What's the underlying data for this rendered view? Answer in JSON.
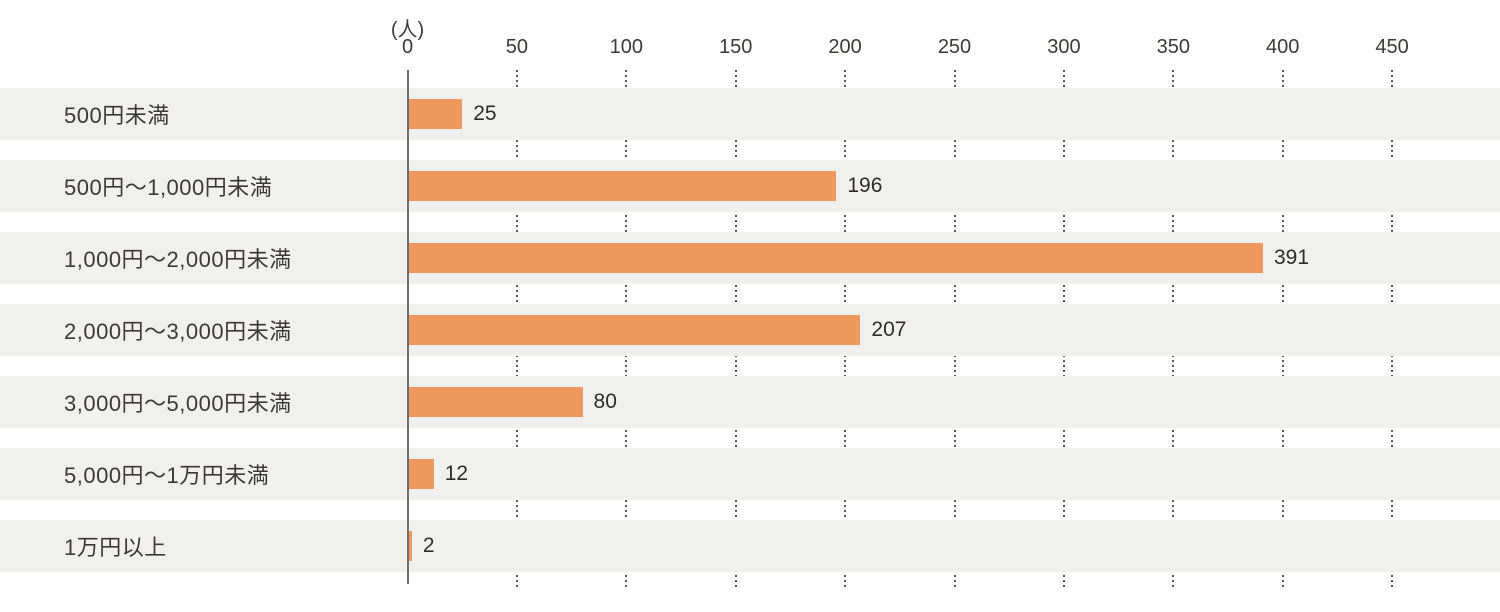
{
  "chart_data": {
    "type": "bar",
    "orientation": "horizontal",
    "title": "",
    "unit_label": "(人)",
    "categories": [
      "500円未満",
      "500円〜1,000円未満",
      "1,000円〜2,000円未満",
      "2,000円〜3,000円未満",
      "3,000円〜5,000円未満",
      "5,000円〜1万円未満",
      "1万円以上"
    ],
    "values": [
      25,
      196,
      391,
      207,
      80,
      12,
      2
    ],
    "value_labels": [
      "25",
      "196",
      "391",
      "207",
      "80",
      "12",
      "2"
    ],
    "xlim": [
      0,
      450
    ],
    "xticks": [
      0,
      50,
      100,
      150,
      200,
      250,
      300,
      350,
      400,
      450
    ],
    "xtick_labels": [
      "0",
      "50",
      "100",
      "150",
      "200",
      "250",
      "300",
      "350",
      "400",
      "450"
    ],
    "grid": "dotted-vertical",
    "legend": "none",
    "colors": {
      "bar": "#f0995f",
      "row_background": "#f0f0ee",
      "axis_line": "#6f6f6f",
      "grid_dot": "#595959",
      "text": "#3c3a39"
    }
  }
}
